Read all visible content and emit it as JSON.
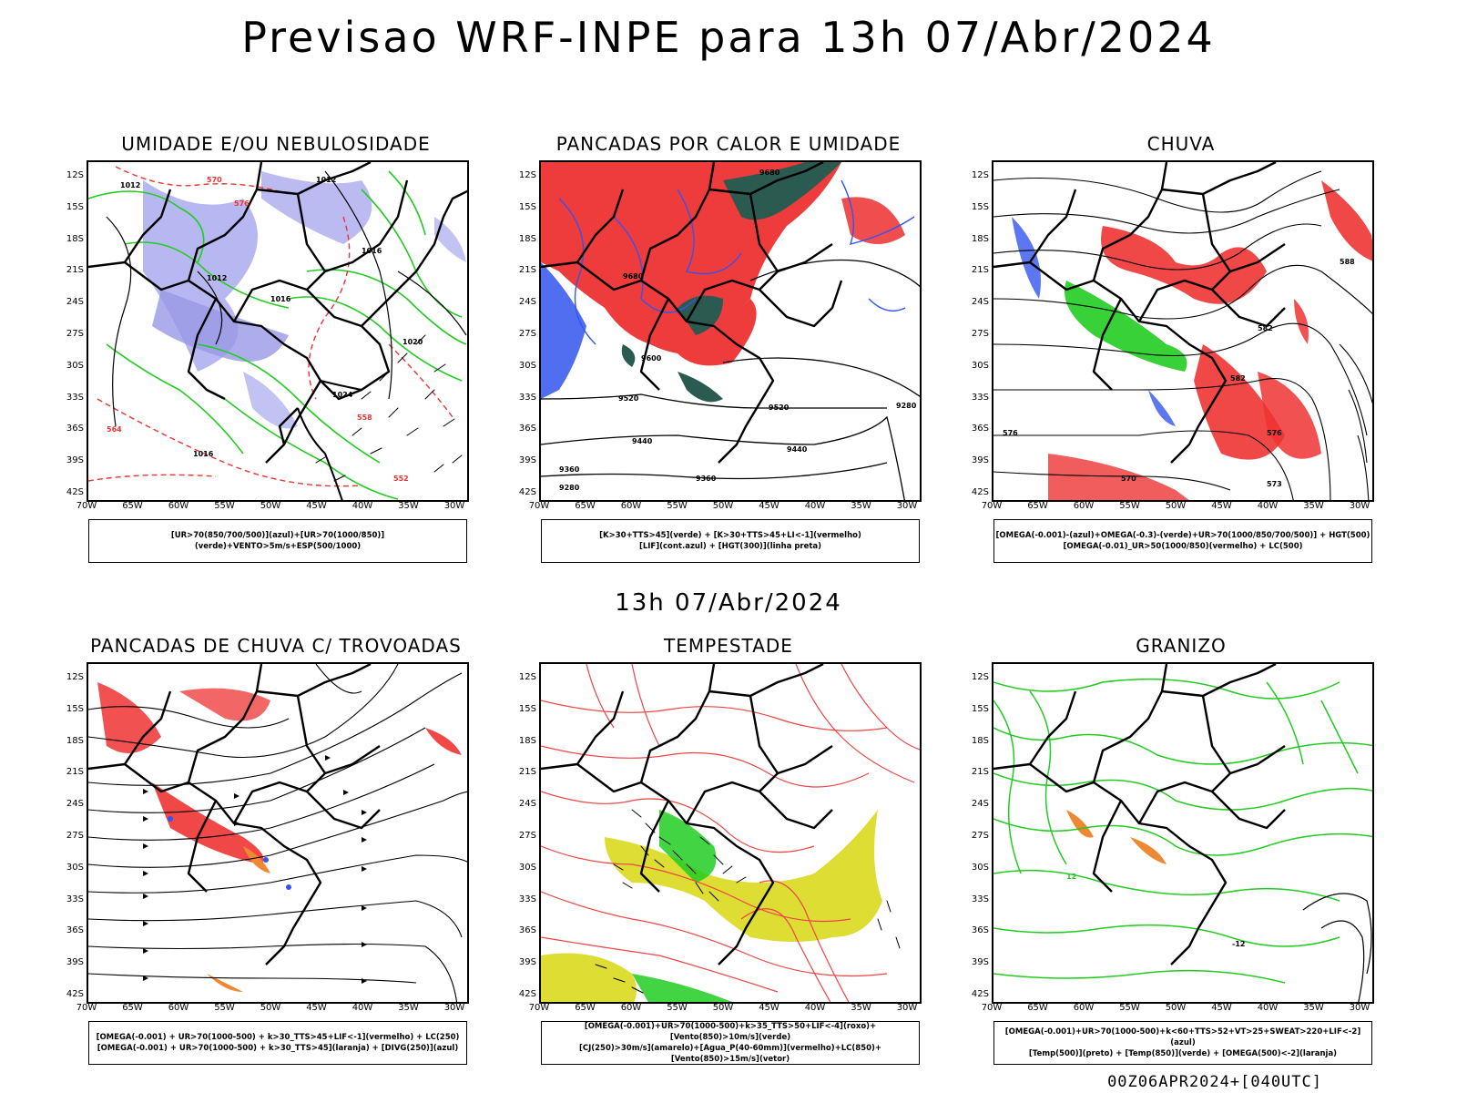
{
  "header": {
    "title": "Previsao WRF-INPE  para 13h 07/Abr/2024"
  },
  "mid_title": "13h 07/Abr/2024",
  "footer": "00Z06APR2024+[040UTC]",
  "axes": {
    "lat_labels": [
      "12S",
      "15S",
      "18S",
      "21S",
      "24S",
      "27S",
      "30S",
      "33S",
      "36S",
      "39S",
      "42S"
    ],
    "lon_labels": [
      "70W",
      "65W",
      "60W",
      "55W",
      "50W",
      "45W",
      "40W",
      "35W",
      "30W"
    ]
  },
  "panels": [
    {
      "title": "UMIDADE E/OU NEBULOSIDADE",
      "legend": [
        "[UR>70(850/700/500)](azul)+[UR>70(1000/850)](verde)+VENTO>5m/s+ESP(500/1000)"
      ]
    },
    {
      "title": "PANCADAS POR CALOR E UMIDADE",
      "legend": [
        "[K>30+TTS>45](verde) + [K>30+TTS>45+LI<-1](vermelho)",
        "[LIF](cont.azul) + [HGT(300)](linha preta)"
      ]
    },
    {
      "title": "CHUVA",
      "legend": [
        "[OMEGA(-0.001)-(azul)+OMEGA(-0.3)-(verde)+UR>70(1000/850/700/500)] + HGT(500)",
        "[OMEGA(-0.01)_UR>50(1000/850)(vermelho) + LC(500)"
      ]
    },
    {
      "title": "PANCADAS DE CHUVA C/ TROVOADAS",
      "legend": [
        "[OMEGA(-0.001) + UR>70(1000-500) + k>30_TTS>45+LIF<-1](vermelho) + LC(250)",
        "[OMEGA(-0.001) + UR>70(1000-500) + k>30_TTS>45](laranja) + [DIVG(250)](azul)"
      ]
    },
    {
      "title": "TEMPESTADE",
      "legend": [
        "[OMEGA(-0.001)+UR>70(1000-500)+k>35_TTS>50+LIF<-4](roxo)+[Vento(850)>10m/s](verde)",
        "[CJ(250)>30m/s](amarelo)+[Agua_P(40-60mm)](vermelho)+LC(850)+[Vento(850)>15m/s](vetor)"
      ]
    },
    {
      "title": "GRANIZO",
      "legend": [
        "[OMEGA(-0.001)+UR>70(1000-500)+k<60+TTS>52+VT>25+SWEAT>220+LIF<-2](azul)",
        "[Temp(500)](preto) + [Temp(850)](verde) + [OMEGA(500)<-2](laranja)"
      ]
    }
  ],
  "contour_labels": {
    "p1": [
      "1012",
      "1012",
      "1012",
      "1016",
      "1016",
      "1020",
      "1024",
      "1016",
      "570",
      "576",
      "552",
      "558",
      "564"
    ],
    "p2": [
      "9680",
      "9680",
      "9600",
      "9520",
      "9440",
      "9360",
      "9280",
      "9520",
      "9440",
      "9360",
      "9280"
    ],
    "p3": [
      "576",
      "582",
      "588",
      "582",
      "576",
      "573",
      "570"
    ],
    "p6": [
      "-12",
      "12"
    ]
  },
  "colors": {
    "blue_fill": "#aaaaee",
    "green": "#22cc22",
    "red": "#ee3333",
    "dark_green": "#2a5a50",
    "yellow": "#dddd33",
    "orange": "#ee8833",
    "contour_blue": "#3355ee",
    "black": "#000000"
  }
}
